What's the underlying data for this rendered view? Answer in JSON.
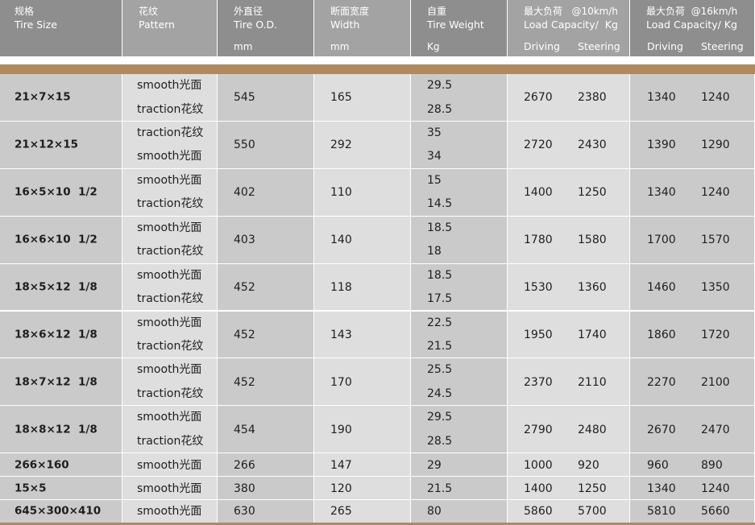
{
  "header": {
    "columns": [
      {
        "zh": "规格",
        "en": "Tire Size"
      },
      {
        "zh": "花纹",
        "en": "Pattern"
      },
      {
        "zh": "外直径",
        "en": "Tire O.D.",
        "unit": "mm"
      },
      {
        "zh": "断面宽度",
        "en": "Width",
        "unit": "mm"
      },
      {
        "zh": "自重",
        "en": "Tire Weight",
        "unit": "Kg"
      },
      {
        "zh": "最大负荷   @10km/h",
        "en": "Load Capacity/  Kg",
        "sub": [
          "Driving",
          "Steering"
        ]
      },
      {
        "zh": "最大负荷  @16km/h",
        "en": "Load Capacity/ Kg",
        "sub": [
          "Driving",
          "Steering"
        ]
      }
    ]
  },
  "table": {
    "rows": [
      {
        "size": "21×7×15",
        "pattern": [
          "smooth光面",
          "traction花纹"
        ],
        "od": 545,
        "width": 165,
        "weight": [
          29.5,
          28.5
        ],
        "load10": [
          2670,
          2380
        ],
        "load16": [
          1340,
          1240
        ]
      },
      {
        "size": "21×12×15",
        "pattern": [
          "traction花纹",
          "smooth光面"
        ],
        "od": 550,
        "width": 292,
        "weight": [
          35,
          34
        ],
        "load10": [
          2720,
          2430
        ],
        "load16": [
          1390,
          1290
        ]
      },
      {
        "size": "16×5×10  1/2",
        "pattern": [
          "smooth光面",
          "traction花纹"
        ],
        "od": 402,
        "width": 110,
        "weight": [
          15,
          14.5
        ],
        "load10": [
          1400,
          1250
        ],
        "load16": [
          1340,
          1240
        ]
      },
      {
        "size": "16×6×10  1/2",
        "pattern": [
          "smooth光面",
          "traction花纹"
        ],
        "od": 403,
        "width": 140,
        "weight": [
          18.5,
          18
        ],
        "load10": [
          1780,
          1580
        ],
        "load16": [
          1700,
          1570
        ]
      },
      {
        "size": "18×5×12  1/8",
        "pattern": [
          "smooth光面",
          "traction花纹"
        ],
        "od": 452,
        "width": 118,
        "weight": [
          18.5,
          17.5
        ],
        "load10": [
          1530,
          1360
        ],
        "load16": [
          1460,
          1350
        ]
      },
      {
        "size": "18×6×12  1/8",
        "pattern": [
          "smooth光面",
          "traction花纹"
        ],
        "od": 452,
        "width": 143,
        "weight": [
          22.5,
          21.5
        ],
        "load10": [
          1950,
          1740
        ],
        "load16": [
          1860,
          1720
        ]
      },
      {
        "size": "18×7×12  1/8",
        "pattern": [
          "smooth光面",
          "traction花纹"
        ],
        "od": 452,
        "width": 170,
        "weight": [
          25.5,
          24.5
        ],
        "load10": [
          2370,
          2110
        ],
        "load16": [
          2270,
          2100
        ]
      },
      {
        "size": "18×8×12  1/8",
        "pattern": [
          "smooth光面",
          "traction花纹"
        ],
        "od": 454,
        "width": 190,
        "weight": [
          29.5,
          28.5
        ],
        "load10": [
          2790,
          2480
        ],
        "load16": [
          2670,
          2470
        ]
      },
      {
        "size": "266×160",
        "pattern": [
          "smooth光面"
        ],
        "od": 266,
        "width": 147,
        "weight": [
          29
        ],
        "load10": [
          1000,
          920
        ],
        "load16": [
          960,
          890
        ]
      },
      {
        "size": "15×5",
        "pattern": [
          "smooth光面"
        ],
        "od": 380,
        "width": 120,
        "weight": [
          21.5
        ],
        "load10": [
          1400,
          1250
        ],
        "load16": [
          1340,
          1240
        ]
      },
      {
        "size": "645×300×410",
        "pattern": [
          "smooth光面"
        ],
        "od": 630,
        "width": 265,
        "weight": [
          80
        ],
        "load10": [
          5860,
          5700
        ],
        "load16": [
          5810,
          5660
        ]
      }
    ]
  }
}
